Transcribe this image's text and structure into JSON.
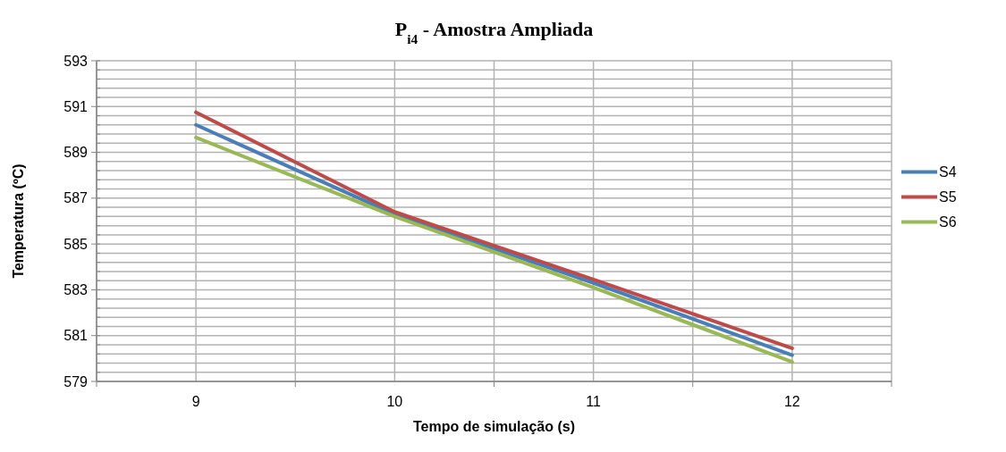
{
  "chart_data": {
    "type": "line",
    "title": "P$_{i4}$ - Amostra Ampliada",
    "xlabel": "Tempo de simulação (s)",
    "ylabel": "Temperatura (ºC)",
    "categories": [
      "9",
      "10",
      "11",
      "12"
    ],
    "series": [
      {
        "name": "S4",
        "color": "#4a7ebb",
        "values": [
          590.2,
          586.3,
          583.3,
          580.15
        ]
      },
      {
        "name": "S5",
        "color": "#be4b48",
        "values": [
          590.75,
          586.4,
          583.45,
          580.45
        ]
      },
      {
        "name": "S6",
        "color": "#98b954",
        "values": [
          589.65,
          586.2,
          583.1,
          579.85
        ]
      }
    ],
    "ylim": [
      579,
      593
    ],
    "yticks": [
      579,
      {
        "value": 579.4,
        "label": null
      },
      {
        "value": 579.8,
        "label": null
      },
      {
        "value": 580.2,
        "label": null
      },
      {
        "value": 580.6,
        "label": null
      },
      581,
      {
        "value": 581.4,
        "label": null
      },
      {
        "value": 581.8,
        "label": null
      },
      {
        "value": 582.2,
        "label": null
      },
      {
        "value": 582.6,
        "label": null
      },
      583,
      {
        "value": 583.4,
        "label": null
      },
      {
        "value": 583.8,
        "label": null
      },
      {
        "value": 584.2,
        "label": null
      },
      {
        "value": 584.6,
        "label": null
      },
      585,
      {
        "value": 585.4,
        "label": null
      },
      {
        "value": 585.8,
        "label": null
      },
      {
        "value": 586.2,
        "label": null
      },
      {
        "value": 586.6,
        "label": null
      },
      587,
      {
        "value": 587.4,
        "label": null
      },
      {
        "value": 587.8,
        "label": null
      },
      {
        "value": 588.2,
        "label": null
      },
      {
        "value": 588.6,
        "label": null
      },
      589,
      {
        "value": 589.4,
        "label": null
      },
      {
        "value": 589.8,
        "label": null
      },
      {
        "value": 590.2,
        "label": null
      },
      {
        "value": 590.6,
        "label": null
      },
      591,
      {
        "value": 591.4,
        "label": null
      },
      {
        "value": 591.8,
        "label": null
      },
      {
        "value": 592.2,
        "label": null
      },
      {
        "value": 592.6,
        "label": null
      },
      593
    ],
    "grid": true,
    "legend": "right",
    "marker": "none",
    "line_style": "solid"
  }
}
